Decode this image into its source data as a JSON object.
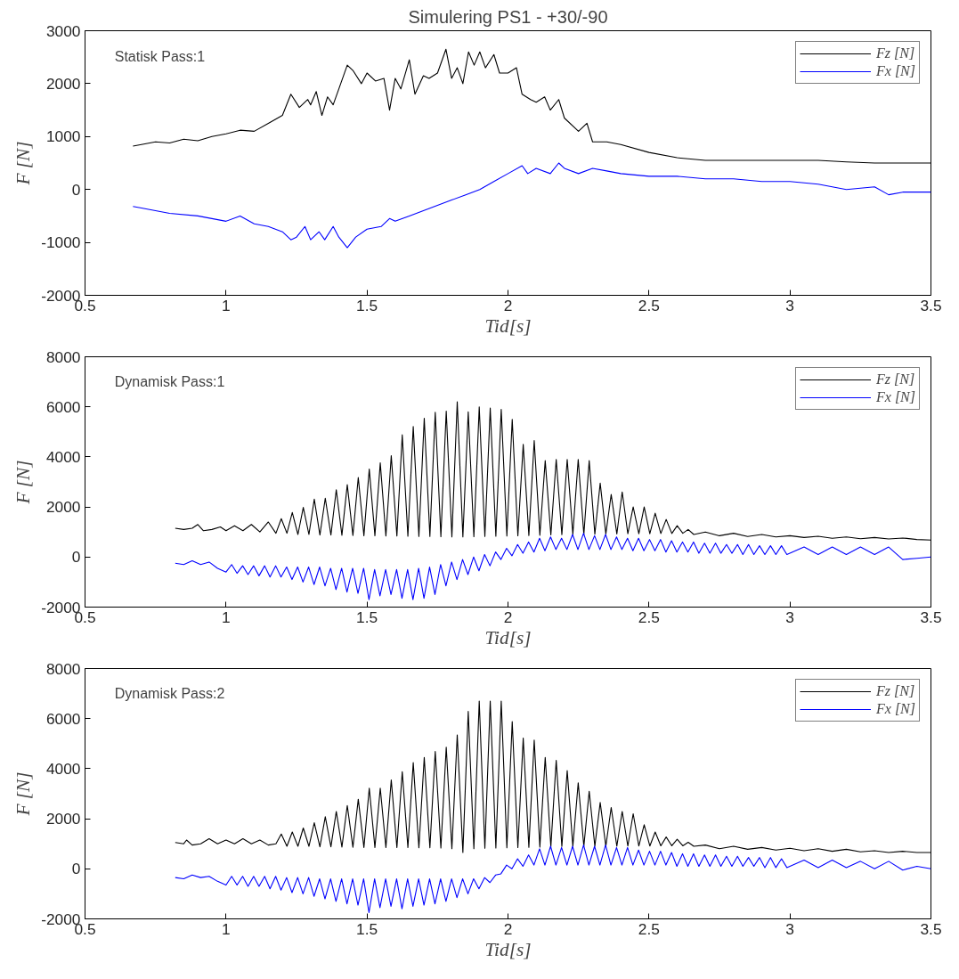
{
  "chart_data": [
    {
      "type": "line",
      "title": "Simulering PS1 - +30/-90",
      "xlabel": "Tid[s]",
      "ylabel": "F [N]",
      "annotations": [
        "Statisk Pass:1"
      ],
      "legend": "top right",
      "xlim": [
        0.5,
        3.5
      ],
      "xticks": [
        0.5,
        1,
        1.5,
        2,
        2.5,
        3,
        3.5
      ],
      "ylim": [
        -2000,
        3000
      ],
      "yticks": [
        -2000,
        -1000,
        0,
        1000,
        2000,
        3000
      ],
      "series": [
        {
          "name": "Fz [N]",
          "color": "#000000",
          "x": [
            0.67,
            0.7,
            0.75,
            0.8,
            0.85,
            0.9,
            0.95,
            1.0,
            1.05,
            1.1,
            1.15,
            1.2,
            1.23,
            1.26,
            1.29,
            1.3,
            1.32,
            1.34,
            1.36,
            1.38,
            1.4,
            1.43,
            1.45,
            1.48,
            1.5,
            1.53,
            1.56,
            1.58,
            1.6,
            1.62,
            1.65,
            1.67,
            1.7,
            1.72,
            1.75,
            1.78,
            1.8,
            1.82,
            1.84,
            1.86,
            1.88,
            1.9,
            1.92,
            1.95,
            1.97,
            2.0,
            2.03,
            2.05,
            2.08,
            2.1,
            2.13,
            2.15,
            2.18,
            2.2,
            2.25,
            2.28,
            2.3,
            2.35,
            2.4,
            2.5,
            2.6,
            2.7,
            2.8,
            2.9,
            3.0,
            3.1,
            3.2,
            3.3,
            3.4,
            3.5
          ],
          "values": [
            820,
            850,
            900,
            880,
            950,
            920,
            1000,
            1050,
            1120,
            1100,
            1250,
            1400,
            1800,
            1550,
            1700,
            1600,
            1850,
            1400,
            1750,
            1600,
            1900,
            2350,
            2250,
            2000,
            2200,
            2050,
            2100,
            1500,
            2100,
            1900,
            2450,
            1800,
            2150,
            2100,
            2200,
            2650,
            2100,
            2300,
            2000,
            2600,
            2350,
            2600,
            2300,
            2550,
            2200,
            2200,
            2300,
            1800,
            1700,
            1650,
            1750,
            1500,
            1700,
            1350,
            1100,
            1250,
            900,
            900,
            850,
            700,
            600,
            550,
            550,
            550,
            550,
            550,
            520,
            500,
            500,
            500
          ]
        },
        {
          "name": "Fx [N]",
          "color": "#0000ff",
          "x": [
            0.67,
            0.7,
            0.8,
            0.9,
            1.0,
            1.05,
            1.1,
            1.15,
            1.2,
            1.23,
            1.25,
            1.28,
            1.3,
            1.33,
            1.35,
            1.38,
            1.4,
            1.43,
            1.46,
            1.5,
            1.55,
            1.58,
            1.6,
            1.65,
            1.7,
            1.75,
            1.8,
            1.85,
            1.9,
            1.95,
            2.0,
            2.05,
            2.07,
            2.1,
            2.15,
            2.18,
            2.2,
            2.25,
            2.3,
            2.35,
            2.4,
            2.5,
            2.6,
            2.7,
            2.8,
            2.9,
            3.0,
            3.1,
            3.2,
            3.3,
            3.35,
            3.4,
            3.5
          ],
          "values": [
            -320,
            -350,
            -450,
            -500,
            -600,
            -500,
            -650,
            -700,
            -800,
            -950,
            -900,
            -700,
            -950,
            -800,
            -950,
            -700,
            -900,
            -1100,
            -900,
            -750,
            -700,
            -550,
            -600,
            -500,
            -400,
            -300,
            -200,
            -100,
            0,
            150,
            300,
            450,
            300,
            400,
            300,
            500,
            400,
            300,
            400,
            350,
            300,
            250,
            250,
            200,
            200,
            150,
            150,
            100,
            0,
            50,
            -100,
            -50,
            -50
          ]
        }
      ]
    },
    {
      "type": "line",
      "xlabel": "Tid[s]",
      "ylabel": "F [N]",
      "annotations": [
        "Dynamisk Pass:1"
      ],
      "legend": "top right",
      "xlim": [
        0.5,
        3.5
      ],
      "xticks": [
        0.5,
        1,
        1.5,
        2,
        2.5,
        3,
        3.5
      ],
      "ylim": [
        -2000,
        8000
      ],
      "yticks": [
        -2000,
        0,
        2000,
        4000,
        6000,
        8000
      ],
      "series": [
        {
          "name": "Fz [N]",
          "color": "#000000",
          "x": [
            0.82,
            0.85,
            0.88,
            0.9,
            0.92,
            0.95,
            0.98,
            1.0,
            1.03,
            1.06,
            1.09,
            1.12,
            1.15,
            1.177,
            1.196,
            1.216,
            1.235,
            1.255,
            1.274,
            1.294,
            1.313,
            1.333,
            1.352,
            1.372,
            1.391,
            1.411,
            1.43,
            1.45,
            1.469,
            1.489,
            1.508,
            1.528,
            1.547,
            1.567,
            1.586,
            1.606,
            1.625,
            1.645,
            1.664,
            1.684,
            1.703,
            1.723,
            1.742,
            1.762,
            1.781,
            1.801,
            1.82,
            1.84,
            1.859,
            1.879,
            1.898,
            1.918,
            1.937,
            1.957,
            1.976,
            1.996,
            2.015,
            2.035,
            2.054,
            2.074,
            2.093,
            2.113,
            2.132,
            2.152,
            2.171,
            2.191,
            2.21,
            2.23,
            2.249,
            2.269,
            2.288,
            2.308,
            2.327,
            2.347,
            2.366,
            2.386,
            2.405,
            2.425,
            2.444,
            2.464,
            2.483,
            2.503,
            2.522,
            2.542,
            2.561,
            2.581,
            2.6,
            2.62,
            2.639,
            2.659,
            2.7,
            2.75,
            2.8,
            2.85,
            2.9,
            2.95,
            3.0,
            3.05,
            3.1,
            3.15,
            3.2,
            3.25,
            3.3,
            3.35,
            3.4,
            3.45,
            3.5
          ],
          "values": [
            1150,
            1100,
            1150,
            1300,
            1050,
            1100,
            1200,
            1050,
            1250,
            1050,
            1300,
            1000,
            1400,
            950,
            1530,
            950,
            1780,
            900,
            1980,
            900,
            2310,
            880,
            2350,
            880,
            2690,
            870,
            2890,
            860,
            3180,
            850,
            3510,
            850,
            3760,
            840,
            4050,
            840,
            4880,
            830,
            5210,
            820,
            5540,
            820,
            5780,
            810,
            5830,
            800,
            6200,
            800,
            5800,
            810,
            6000,
            820,
            5950,
            830,
            5900,
            840,
            5500,
            850,
            4500,
            860,
            4650,
            870,
            3850,
            880,
            3900,
            890,
            3900,
            900,
            3900,
            900,
            3850,
            910,
            2950,
            920,
            2500,
            920,
            2600,
            930,
            2000,
            930,
            2000,
            930,
            1750,
            940,
            1500,
            940,
            1250,
            950,
            1100,
            900,
            1000,
            850,
            950,
            820,
            900,
            800,
            850,
            780,
            830,
            750,
            800,
            730,
            780,
            720,
            760,
            700,
            680
          ]
        },
        {
          "name": "Fx [N]",
          "color": "#0000ff",
          "x": [
            0.82,
            0.85,
            0.88,
            0.91,
            0.94,
            0.97,
            1.0,
            1.02,
            1.039,
            1.059,
            1.078,
            1.098,
            1.117,
            1.137,
            1.156,
            1.176,
            1.195,
            1.215,
            1.234,
            1.254,
            1.273,
            1.293,
            1.312,
            1.332,
            1.351,
            1.371,
            1.39,
            1.41,
            1.429,
            1.449,
            1.468,
            1.488,
            1.507,
            1.527,
            1.546,
            1.566,
            1.585,
            1.605,
            1.624,
            1.644,
            1.663,
            1.683,
            1.702,
            1.722,
            1.741,
            1.761,
            1.78,
            1.8,
            1.819,
            1.839,
            1.858,
            1.878,
            1.897,
            1.917,
            1.936,
            1.956,
            1.975,
            1.995,
            2.014,
            2.034,
            2.053,
            2.073,
            2.092,
            2.112,
            2.131,
            2.151,
            2.17,
            2.19,
            2.209,
            2.229,
            2.248,
            2.268,
            2.287,
            2.307,
            2.326,
            2.346,
            2.365,
            2.385,
            2.404,
            2.424,
            2.443,
            2.463,
            2.482,
            2.502,
            2.521,
            2.541,
            2.56,
            2.58,
            2.599,
            2.619,
            2.638,
            2.658,
            2.677,
            2.697,
            2.716,
            2.736,
            2.755,
            2.775,
            2.794,
            2.814,
            2.833,
            2.853,
            2.872,
            2.892,
            2.911,
            2.931,
            2.95,
            2.97,
            2.989,
            3.05,
            3.1,
            3.15,
            3.2,
            3.25,
            3.3,
            3.35,
            3.4,
            3.45,
            3.5
          ],
          "values": [
            -250,
            -300,
            -150,
            -300,
            -200,
            -450,
            -600,
            -300,
            -650,
            -350,
            -700,
            -350,
            -750,
            -350,
            -800,
            -350,
            -800,
            -400,
            -900,
            -400,
            -1000,
            -400,
            -1100,
            -400,
            -1150,
            -450,
            -1300,
            -450,
            -1400,
            -450,
            -1450,
            -450,
            -1700,
            -500,
            -1550,
            -500,
            -1500,
            -500,
            -1650,
            -500,
            -1700,
            -450,
            -1650,
            -400,
            -1500,
            -300,
            -1150,
            -200,
            -900,
            -100,
            -700,
            0,
            -550,
            100,
            -350,
            200,
            -100,
            350,
            50,
            500,
            150,
            600,
            200,
            750,
            250,
            800,
            300,
            750,
            300,
            900,
            300,
            950,
            300,
            850,
            300,
            900,
            300,
            800,
            300,
            750,
            250,
            750,
            250,
            700,
            250,
            700,
            200,
            650,
            200,
            600,
            200,
            600,
            150,
            550,
            150,
            550,
            150,
            500,
            150,
            500,
            100,
            500,
            100,
            450,
            100,
            450,
            100,
            450,
            100,
            400,
            100,
            400,
            100,
            400,
            100,
            400,
            -100,
            -50,
            0
          ]
        }
      ]
    },
    {
      "type": "line",
      "xlabel": "Tid[s]",
      "ylabel": "F [N]",
      "annotations": [
        "Dynamisk Pass:2"
      ],
      "legend": "top right",
      "xlim": [
        0.5,
        3.5
      ],
      "xticks": [
        0.5,
        1,
        1.5,
        2,
        2.5,
        3,
        3.5
      ],
      "ylim": [
        -2000,
        8000
      ],
      "yticks": [
        -2000,
        0,
        2000,
        4000,
        6000,
        8000
      ],
      "series": [
        {
          "name": "Fz [N]",
          "color": "#000000",
          "x": [
            0.82,
            0.85,
            0.86,
            0.88,
            0.91,
            0.94,
            0.97,
            1.0,
            1.03,
            1.06,
            1.09,
            1.12,
            1.15,
            1.177,
            1.196,
            1.216,
            1.235,
            1.255,
            1.274,
            1.294,
            1.313,
            1.333,
            1.352,
            1.372,
            1.391,
            1.411,
            1.43,
            1.45,
            1.469,
            1.489,
            1.508,
            1.528,
            1.547,
            1.567,
            1.586,
            1.606,
            1.625,
            1.645,
            1.664,
            1.684,
            1.703,
            1.723,
            1.742,
            1.762,
            1.781,
            1.801,
            1.82,
            1.84,
            1.859,
            1.879,
            1.898,
            1.918,
            1.937,
            1.957,
            1.976,
            1.996,
            2.015,
            2.035,
            2.054,
            2.074,
            2.093,
            2.113,
            2.132,
            2.152,
            2.171,
            2.191,
            2.21,
            2.23,
            2.249,
            2.269,
            2.288,
            2.308,
            2.327,
            2.347,
            2.366,
            2.386,
            2.405,
            2.425,
            2.444,
            2.464,
            2.483,
            2.503,
            2.522,
            2.542,
            2.561,
            2.581,
            2.6,
            2.62,
            2.639,
            2.659,
            2.7,
            2.75,
            2.8,
            2.85,
            2.9,
            2.95,
            3.0,
            3.05,
            3.1,
            3.15,
            3.2,
            3.25,
            3.3,
            3.35,
            3.4,
            3.45,
            3.5
          ],
          "values": [
            1050,
            1000,
            1150,
            950,
            1000,
            1200,
            1000,
            1150,
            1000,
            1200,
            1000,
            1150,
            950,
            1000,
            1390,
            900,
            1470,
            900,
            1630,
            900,
            1840,
            880,
            2080,
            880,
            2290,
            870,
            2530,
            860,
            2780,
            850,
            3220,
            850,
            3220,
            850,
            3550,
            850,
            3880,
            850,
            4240,
            840,
            4450,
            840,
            4690,
            830,
            4860,
            800,
            5350,
            650,
            6290,
            800,
            6700,
            820,
            6700,
            830,
            6700,
            840,
            5880,
            850,
            5220,
            860,
            5140,
            870,
            4450,
            880,
            4330,
            890,
            3920,
            900,
            3430,
            900,
            3100,
            900,
            2650,
            900,
            2450,
            900,
            2290,
            910,
            2200,
            910,
            1760,
            910,
            1470,
            920,
            1270,
            920,
            1180,
            920,
            1060,
            900,
            950,
            800,
            900,
            780,
            850,
            750,
            820,
            720,
            800,
            700,
            780,
            680,
            720,
            650,
            700,
            650,
            650
          ]
        },
        {
          "name": "Fx [N]",
          "color": "#0000ff",
          "x": [
            0.82,
            0.85,
            0.88,
            0.91,
            0.94,
            0.97,
            1.0,
            1.02,
            1.039,
            1.059,
            1.078,
            1.098,
            1.117,
            1.137,
            1.156,
            1.176,
            1.195,
            1.215,
            1.234,
            1.254,
            1.273,
            1.293,
            1.312,
            1.332,
            1.351,
            1.371,
            1.39,
            1.41,
            1.429,
            1.449,
            1.468,
            1.488,
            1.507,
            1.527,
            1.546,
            1.566,
            1.585,
            1.605,
            1.624,
            1.644,
            1.663,
            1.683,
            1.702,
            1.722,
            1.741,
            1.761,
            1.78,
            1.8,
            1.819,
            1.839,
            1.858,
            1.878,
            1.897,
            1.917,
            1.936,
            1.956,
            1.975,
            1.995,
            2.014,
            2.034,
            2.053,
            2.073,
            2.092,
            2.112,
            2.131,
            2.151,
            2.17,
            2.19,
            2.209,
            2.229,
            2.248,
            2.268,
            2.287,
            2.307,
            2.326,
            2.346,
            2.365,
            2.385,
            2.404,
            2.424,
            2.443,
            2.463,
            2.482,
            2.502,
            2.521,
            2.541,
            2.56,
            2.58,
            2.599,
            2.619,
            2.638,
            2.658,
            2.677,
            2.697,
            2.716,
            2.736,
            2.755,
            2.775,
            2.794,
            2.814,
            2.833,
            2.853,
            2.872,
            2.892,
            2.911,
            2.931,
            2.95,
            2.97,
            2.989,
            3.05,
            3.1,
            3.15,
            3.2,
            3.25,
            3.3,
            3.35,
            3.4,
            3.45,
            3.5
          ],
          "values": [
            -350,
            -400,
            -250,
            -350,
            -300,
            -500,
            -650,
            -300,
            -650,
            -300,
            -700,
            -300,
            -700,
            -300,
            -800,
            -300,
            -850,
            -350,
            -950,
            -350,
            -1000,
            -350,
            -1100,
            -400,
            -1200,
            -400,
            -1300,
            -400,
            -1400,
            -400,
            -1450,
            -400,
            -1750,
            -400,
            -1550,
            -400,
            -1500,
            -400,
            -1600,
            -400,
            -1500,
            -400,
            -1450,
            -400,
            -1400,
            -400,
            -1300,
            -400,
            -1150,
            -400,
            -1000,
            -400,
            -800,
            -350,
            -550,
            -250,
            -200,
            150,
            0,
            400,
            100,
            550,
            150,
            800,
            150,
            900,
            150,
            850,
            150,
            900,
            150,
            950,
            150,
            900,
            150,
            950,
            150,
            850,
            150,
            850,
            150,
            750,
            150,
            700,
            150,
            700,
            150,
            650,
            100,
            600,
            100,
            600,
            100,
            550,
            100,
            550,
            100,
            500,
            100,
            500,
            100,
            450,
            100,
            450,
            50,
            450,
            50,
            400,
            50,
            350,
            50,
            350,
            50,
            300,
            0,
            300,
            -50,
            100,
            0
          ]
        }
      ]
    }
  ]
}
